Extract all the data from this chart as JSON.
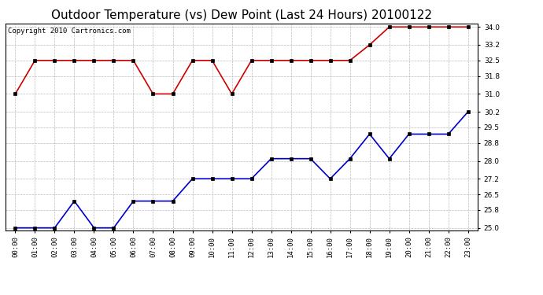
{
  "title": "Outdoor Temperature (vs) Dew Point (Last 24 Hours) 20100122",
  "copyright_text": "Copyright 2010 Cartronics.com",
  "x_labels": [
    "00:00",
    "01:00",
    "02:00",
    "03:00",
    "04:00",
    "05:00",
    "06:00",
    "07:00",
    "08:00",
    "09:00",
    "10:00",
    "11:00",
    "12:00",
    "13:00",
    "14:00",
    "15:00",
    "16:00",
    "17:00",
    "18:00",
    "19:00",
    "20:00",
    "21:00",
    "22:00",
    "23:00"
  ],
  "temp_data": [
    31.0,
    32.5,
    32.5,
    32.5,
    32.5,
    32.5,
    32.5,
    31.0,
    31.0,
    32.5,
    32.5,
    31.0,
    32.5,
    32.5,
    32.5,
    32.5,
    32.5,
    32.5,
    33.2,
    34.0,
    34.0,
    34.0,
    34.0,
    34.0
  ],
  "dew_data": [
    25.0,
    25.0,
    25.0,
    26.2,
    25.0,
    25.0,
    26.2,
    26.2,
    26.2,
    27.2,
    27.2,
    27.2,
    27.2,
    28.1,
    28.1,
    28.1,
    27.2,
    28.1,
    29.2,
    28.1,
    29.2,
    29.2,
    29.2,
    30.2
  ],
  "temp_color": "#cc0000",
  "dew_color": "#0000cc",
  "ylim_min": 24.9,
  "ylim_max": 34.15,
  "yticks": [
    25.0,
    25.8,
    26.5,
    27.2,
    28.0,
    28.8,
    29.5,
    30.2,
    31.0,
    31.8,
    32.5,
    33.2,
    34.0
  ],
  "background_color": "#ffffff",
  "plot_bg_color": "#ffffff",
  "grid_color": "#bbbbbb",
  "title_fontsize": 11,
  "copyright_fontsize": 6.5,
  "tick_fontsize": 6.5,
  "marker": "s",
  "marker_size": 3,
  "line_width": 1.2
}
